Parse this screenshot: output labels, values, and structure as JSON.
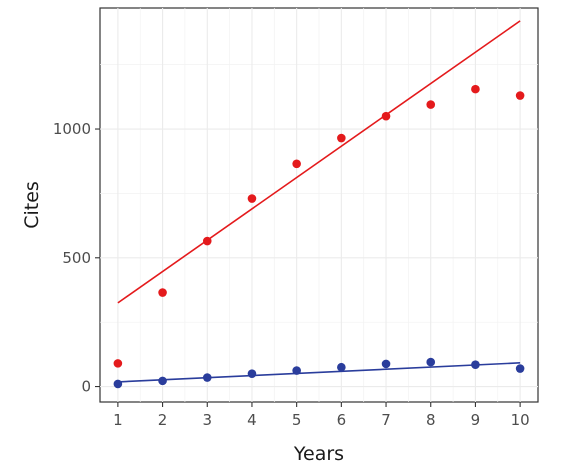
{
  "chart_data": {
    "type": "scatter",
    "title": "",
    "xlabel": "Years",
    "ylabel": "Cites",
    "x": [
      1,
      2,
      3,
      4,
      5,
      6,
      7,
      8,
      9,
      10
    ],
    "x_ticks": [
      1,
      2,
      3,
      4,
      5,
      6,
      7,
      8,
      9,
      10
    ],
    "y_ticks": [
      0,
      500,
      1000
    ],
    "xlim": [
      0.6,
      10.4
    ],
    "ylim": [
      -60,
      1470
    ],
    "grid": true,
    "legend": "none",
    "series": [
      {
        "color": "#e41a1c",
        "values": [
          90,
          365,
          565,
          730,
          865,
          965,
          1050,
          1095,
          1155,
          1130
        ],
        "fit_line": {
          "x": [
            1,
            10
          ],
          "y": [
            325,
            1420
          ]
        }
      },
      {
        "color": "#2a3d9c",
        "values": [
          10,
          22,
          35,
          50,
          62,
          75,
          88,
          95,
          85,
          70
        ],
        "fit_line": {
          "x": [
            1,
            10
          ],
          "y": [
            18,
            92
          ]
        }
      }
    ]
  }
}
